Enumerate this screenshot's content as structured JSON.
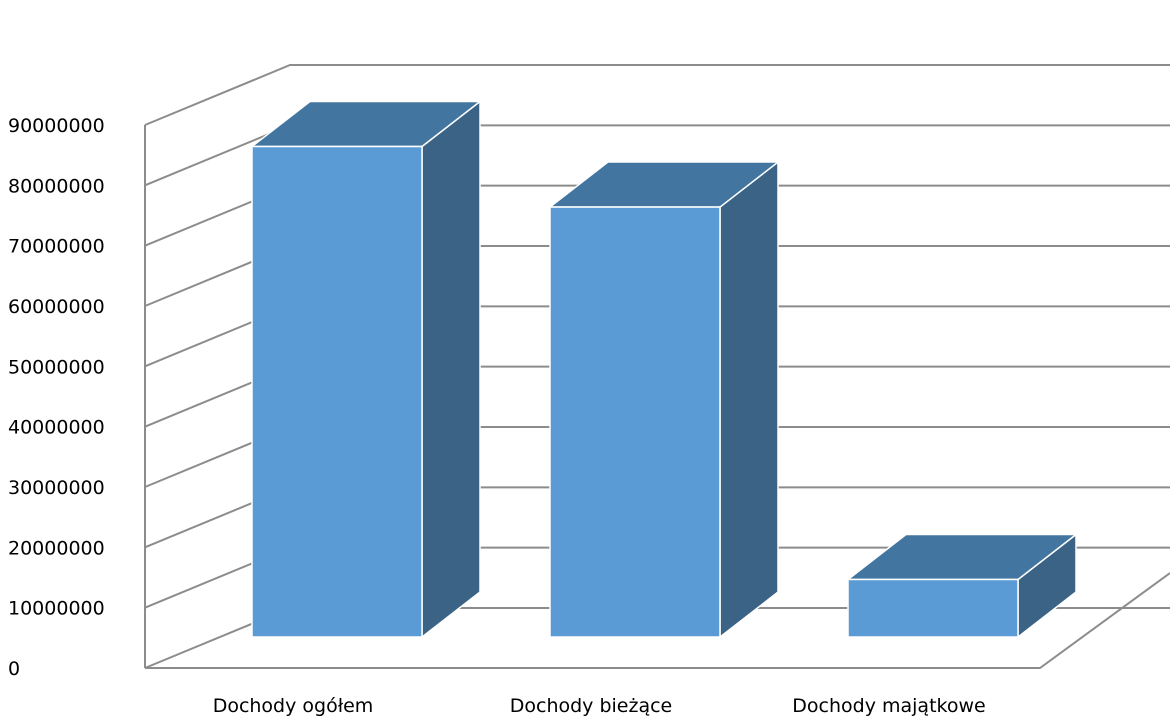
{
  "chart_data": {
    "type": "bar",
    "style": "3d-column",
    "categories": [
      "Dochody ogółem",
      "Dochody bieżące",
      "Dochody majątkowe"
    ],
    "values": [
      81000000,
      71000000,
      9500000
    ],
    "y_ticks": [
      "0",
      "10000000",
      "20000000",
      "30000000",
      "40000000",
      "50000000",
      "60000000",
      "70000000",
      "80000000",
      "90000000"
    ],
    "ylim": [
      0,
      90000000
    ],
    "grid": true,
    "legend": false,
    "colors": {
      "front": "#5b9bd5",
      "top": "#4275a0",
      "side": "#3a6386",
      "edge": "#ffffff",
      "grid": "#8c8c8c"
    }
  }
}
